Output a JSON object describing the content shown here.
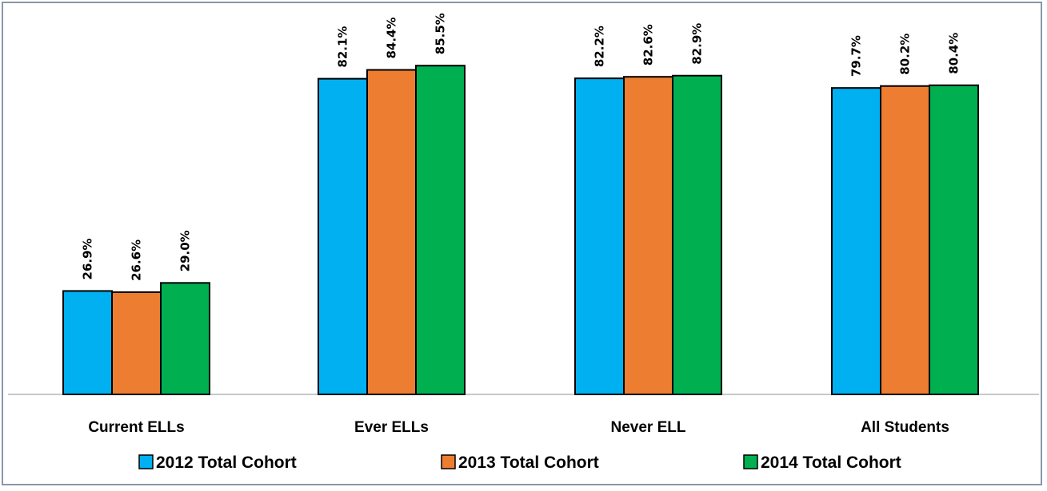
{
  "chart_data": {
    "type": "bar",
    "title": "",
    "xlabel": "",
    "ylabel": "",
    "ylim": [
      0,
      100
    ],
    "grid": false,
    "legend_position": "bottom",
    "categories": [
      "Current ELLs",
      "Ever ELLs",
      "Never ELL",
      "All Students"
    ],
    "series": [
      {
        "name": "2012 Total Cohort",
        "color": "#00b0f0",
        "values": [
          26.9,
          82.1,
          82.2,
          79.7
        ],
        "labels": [
          "26.9%",
          "82.1%",
          "82.2%",
          "79.7%"
        ]
      },
      {
        "name": "2013 Total Cohort",
        "color": "#ed7d31",
        "values": [
          26.6,
          84.4,
          82.6,
          80.2
        ],
        "labels": [
          "26.6%",
          "84.4%",
          "82.6%",
          "80.2%"
        ]
      },
      {
        "name": "2014 Total Cohort",
        "color": "#00b050",
        "values": [
          29.0,
          85.5,
          82.9,
          80.4
        ],
        "labels": [
          "29.0%",
          "85.5%",
          "82.9%",
          "80.4%"
        ]
      }
    ]
  }
}
